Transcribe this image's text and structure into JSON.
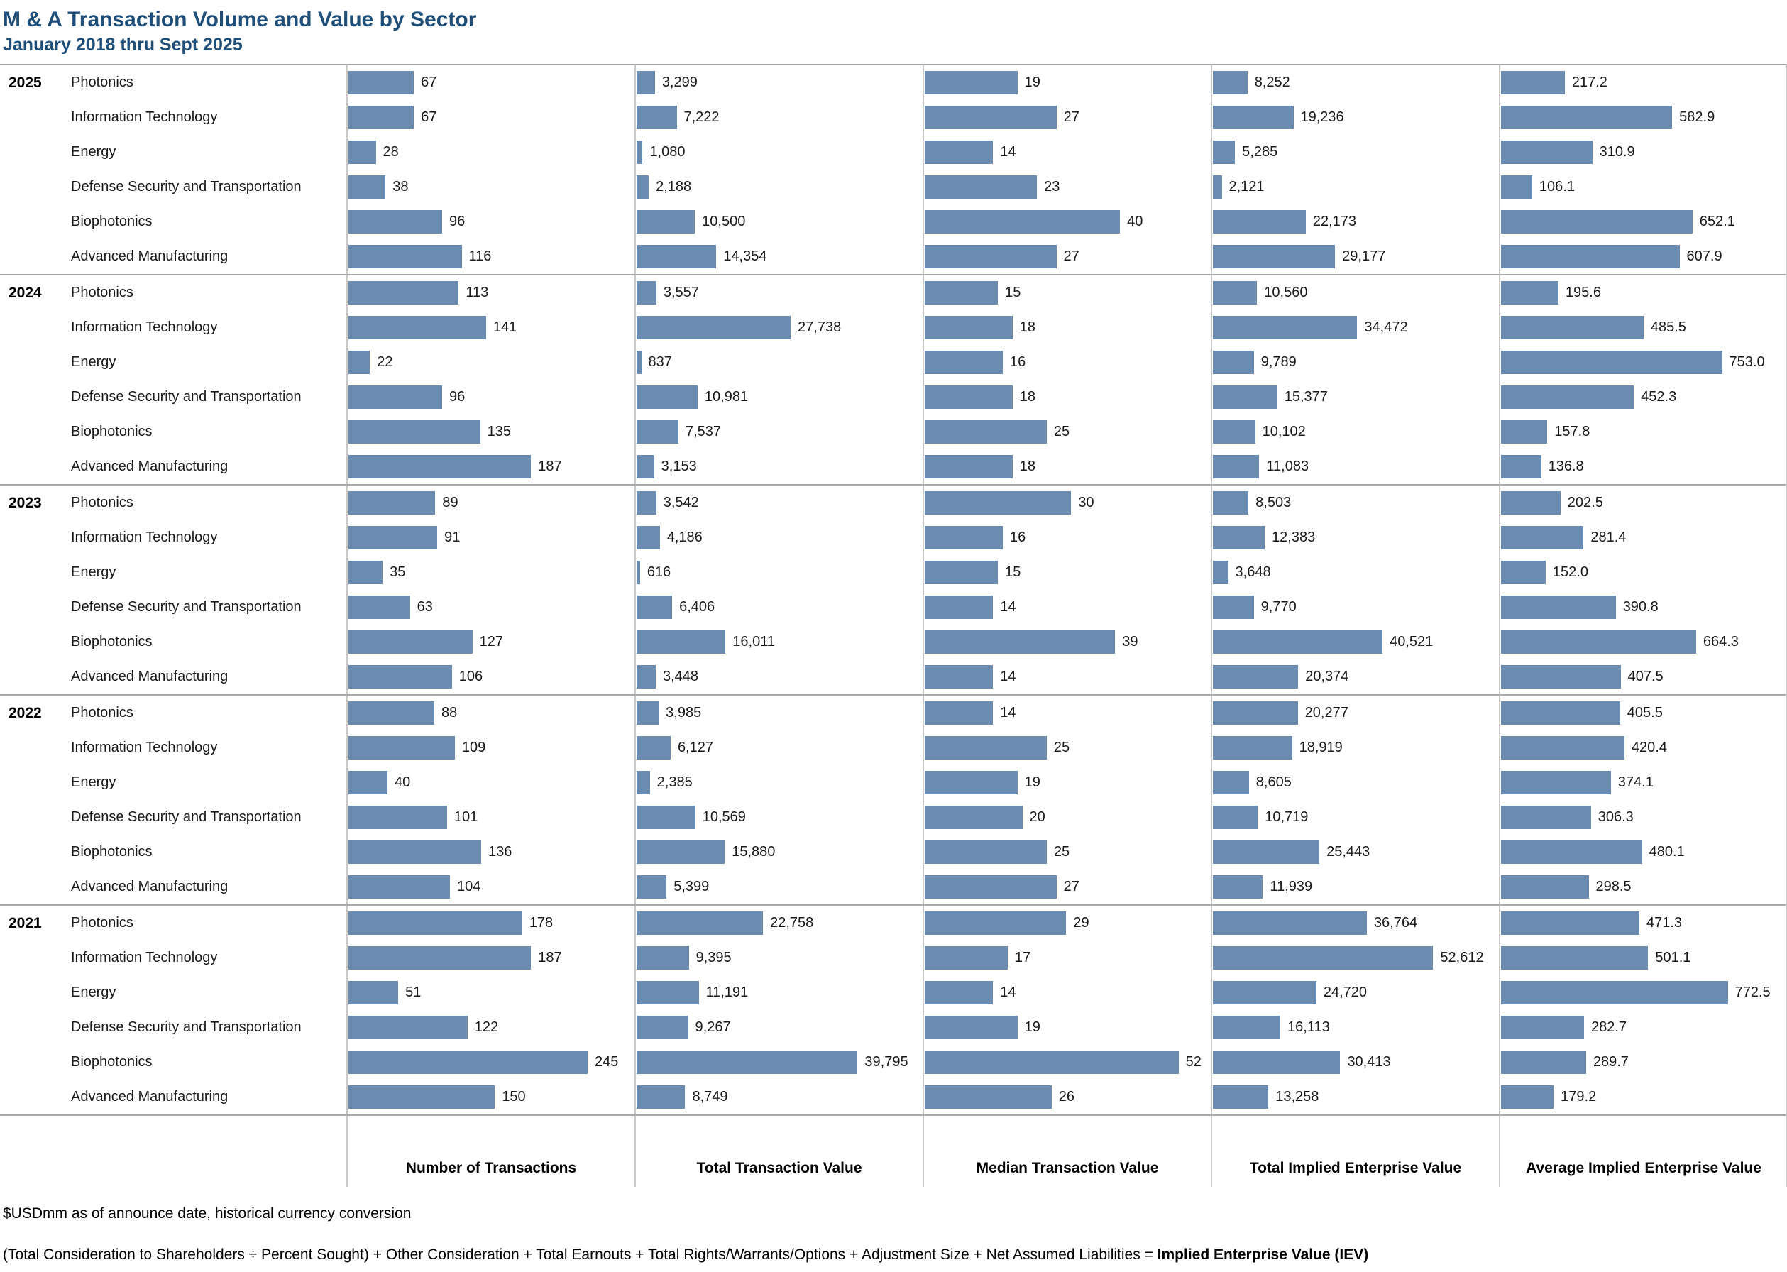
{
  "header": {
    "title": "M & A Transaction Volume and Value by Sector",
    "subtitle": "January 2018 thru Sept 2025"
  },
  "chart_data": {
    "type": "bar",
    "orientation": "horizontal",
    "bar_color": "#6b8bb0",
    "legend": "none",
    "grid": "panel dividers only",
    "metrics": [
      {
        "label": "Number of Transactions",
        "axis_max": 293,
        "format": "int"
      },
      {
        "label": "Total Transaction Value",
        "axis_max": 51500,
        "format": "int"
      },
      {
        "label": "Median Transaction Value",
        "axis_max": 58.6,
        "format": "int"
      },
      {
        "label": "Total Implied Enterprise Value",
        "axis_max": 68300,
        "format": "int"
      },
      {
        "label": "Average Implied Enterprise Value",
        "axis_max": 974,
        "format": "dec1"
      }
    ],
    "sectors": [
      "Photonics",
      "Information Technology",
      "Energy",
      "Defense Security and Transportation",
      "Biophotonics",
      "Advanced Manufacturing"
    ],
    "years": [
      {
        "year": "2025",
        "values": [
          [
            67,
            3299,
            19,
            8252,
            217.2
          ],
          [
            67,
            7222,
            27,
            19236,
            582.9
          ],
          [
            28,
            1080,
            14,
            5285,
            310.9
          ],
          [
            38,
            2188,
            23,
            2121,
            106.1
          ],
          [
            96,
            10500,
            40,
            22173,
            652.1
          ],
          [
            116,
            14354,
            27,
            29177,
            607.9
          ]
        ]
      },
      {
        "year": "2024",
        "values": [
          [
            113,
            3557,
            15,
            10560,
            195.6
          ],
          [
            141,
            27738,
            18,
            34472,
            485.5
          ],
          [
            22,
            837,
            16,
            9789,
            753.0
          ],
          [
            96,
            10981,
            18,
            15377,
            452.3
          ],
          [
            135,
            7537,
            25,
            10102,
            157.8
          ],
          [
            187,
            3153,
            18,
            11083,
            136.8
          ]
        ]
      },
      {
        "year": "2023",
        "values": [
          [
            89,
            3542,
            30,
            8503,
            202.5
          ],
          [
            91,
            4186,
            16,
            12383,
            281.4
          ],
          [
            35,
            616,
            15,
            3648,
            152.0
          ],
          [
            63,
            6406,
            14,
            9770,
            390.8
          ],
          [
            127,
            16011,
            39,
            40521,
            664.3
          ],
          [
            106,
            3448,
            14,
            20374,
            407.5
          ]
        ]
      },
      {
        "year": "2022",
        "values": [
          [
            88,
            3985,
            14,
            20277,
            405.5
          ],
          [
            109,
            6127,
            25,
            18919,
            420.4
          ],
          [
            40,
            2385,
            19,
            8605,
            374.1
          ],
          [
            101,
            10569,
            20,
            10719,
            306.3
          ],
          [
            136,
            15880,
            25,
            25443,
            480.1
          ],
          [
            104,
            5399,
            27,
            11939,
            298.5
          ]
        ]
      },
      {
        "year": "2021",
        "values": [
          [
            178,
            22758,
            29,
            36764,
            471.3
          ],
          [
            187,
            9395,
            17,
            52612,
            501.1
          ],
          [
            51,
            11191,
            14,
            24720,
            772.5
          ],
          [
            122,
            9267,
            19,
            16113,
            282.7
          ],
          [
            245,
            39795,
            52,
            30413,
            289.7
          ],
          [
            150,
            8749,
            26,
            13258,
            179.2
          ]
        ]
      }
    ]
  },
  "footnotes": {
    "currency": "$USDmm as of announce date, historical currency conversion",
    "formula_main": "(Total Consideration to Shareholders ÷ Percent Sought) + Other Consideration + Total Earnouts + Total Rights/Warrants/Options + Adjustment Size + Net Assumed Liabilities = ",
    "formula_bold": "Implied Enterprise Value (IEV)"
  }
}
